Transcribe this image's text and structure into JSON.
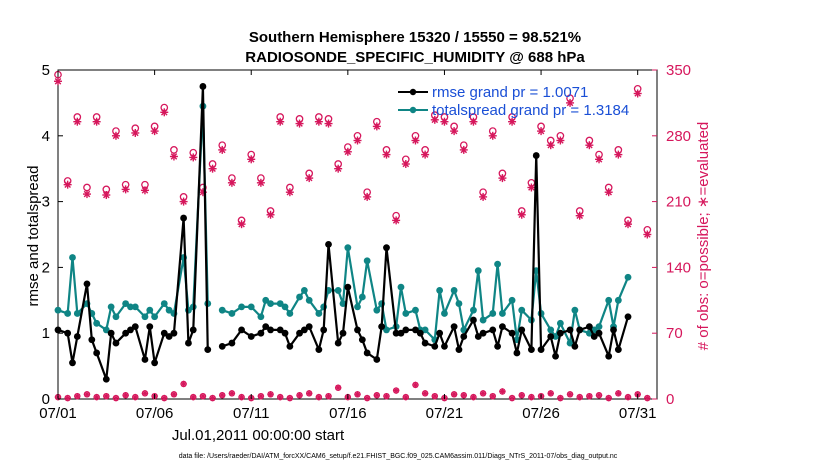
{
  "chart_data": {
    "type": "line",
    "title": "Southern Hemisphere 15320 / 15550 = 98.521%",
    "subtitle": "RADIOSONDE_SPECIFIC_HUMIDITY @ 688 hPa",
    "xlabel": "Jul.01,2011 00:00:00 start",
    "ylabel_left": "rmse and totalspread",
    "ylabel_right": "# of obs: o=possible; ∗=evaluated",
    "x_tick_labels": [
      "07/01",
      "07/06",
      "07/11",
      "07/16",
      "07/21",
      "07/26",
      "07/31"
    ],
    "x_tick_days": [
      1,
      6,
      11,
      16,
      21,
      26,
      31
    ],
    "xlim": [
      1,
      32
    ],
    "ylim_left": [
      0,
      5
    ],
    "ylim_right": [
      0,
      350
    ],
    "y_ticks_left": [
      "0",
      "1",
      "2",
      "3",
      "4",
      "5"
    ],
    "y_ticks_right": [
      "0",
      "70",
      "140",
      "210",
      "280",
      "350"
    ],
    "footer": "data file: /Users/raeder/DAI/ATM_forcXX/CAM6_setup/f.e21.FHIST_BGC.f09_025.CAM6assim.011/Diags_NTrS_2011-07/obs_diag_output.nc",
    "colors": {
      "rmse": "#000000",
      "spread": "#0f8585",
      "obs": "#d6175c",
      "legend_text": "#1a4fd6"
    },
    "series": [
      {
        "name": "rmse grand pr = 1.0071",
        "values": [
          1.05,
          1.0,
          0.55,
          0.95,
          1.75,
          0.9,
          0.7,
          0.3,
          1.0,
          0.85,
          1.0,
          1.05,
          1.1,
          0.6,
          1.1,
          0.55,
          1.0,
          0.95,
          1.0,
          2.75,
          0.85,
          1.05,
          4.75,
          0.75,
          null,
          0.8,
          0.85,
          1.05,
          0.95,
          1.0,
          1.1,
          1.05,
          1.05,
          1.0,
          0.8,
          1.0,
          1.05,
          1.1,
          0.75,
          1.05,
          2.35,
          0.85,
          1.0,
          1.7,
          1.05,
          0.9,
          0.7,
          0.6,
          1.1,
          2.3,
          1.0,
          1.0,
          1.05,
          1.05,
          1.0,
          0.85,
          0.8,
          1.0,
          0.8,
          1.1,
          0.75,
          0.95,
          1.2,
          0.95,
          1.0,
          1.05,
          0.8,
          1.1,
          1.0,
          0.7,
          1.05,
          0.75,
          3.7,
          0.75,
          0.95,
          0.65,
          1.0,
          1.05,
          0.8,
          1.05,
          1.1,
          0.95,
          1.0,
          0.65,
          1.05,
          0.75,
          1.25
        ],
        "days": [
          1.0,
          1.5,
          1.75,
          2.0,
          2.5,
          2.75,
          3.0,
          3.5,
          3.75,
          4.0,
          4.5,
          4.75,
          5.0,
          5.5,
          5.75,
          6.0,
          6.5,
          6.75,
          7.0,
          7.5,
          7.75,
          8.0,
          8.5,
          8.75,
          9.0,
          9.5,
          10.0,
          10.5,
          11.0,
          11.5,
          11.75,
          12.0,
          12.5,
          12.75,
          13.0,
          13.5,
          13.75,
          14.0,
          14.5,
          14.75,
          15.0,
          15.5,
          15.75,
          16.0,
          16.5,
          16.75,
          17.0,
          17.5,
          17.75,
          18.0,
          18.5,
          18.75,
          19.0,
          19.5,
          19.75,
          20.0,
          20.5,
          20.75,
          21.0,
          21.5,
          21.75,
          22.0,
          22.5,
          22.75,
          23.0,
          23.5,
          23.75,
          24.0,
          24.5,
          24.75,
          25.0,
          25.5,
          25.75,
          26.0,
          26.5,
          26.75,
          27.0,
          27.5,
          27.75,
          28.0,
          28.5,
          28.75,
          29.0,
          29.5,
          29.75,
          30.0,
          30.5
        ]
      },
      {
        "name": "totalspread grand pr = 1.3184",
        "values": [
          1.35,
          1.3,
          2.15,
          1.3,
          1.45,
          1.3,
          1.15,
          1.05,
          1.4,
          1.25,
          1.45,
          1.4,
          1.4,
          1.25,
          1.35,
          1.25,
          1.45,
          1.35,
          1.3,
          2.15,
          1.35,
          1.4,
          4.45,
          1.45,
          null,
          1.35,
          1.3,
          1.4,
          1.4,
          1.25,
          1.5,
          1.45,
          1.45,
          1.4,
          1.3,
          1.55,
          1.65,
          1.5,
          1.3,
          1.4,
          1.65,
          1.65,
          1.45,
          2.3,
          1.4,
          1.55,
          2.1,
          1.35,
          1.45,
          1.05,
          1.1,
          1.7,
          1.3,
          1.35,
          1.05,
          1.05,
          0.9,
          1.65,
          1.3,
          1.65,
          1.45,
          1.05,
          1.35,
          1.95,
          1.2,
          1.3,
          2.05,
          1.3,
          1.5,
          0.9,
          1.35,
          1.2,
          1.95,
          1.3,
          1.05,
          0.95,
          1.15,
          0.85,
          1.35,
          1.05,
          1.0,
          1.05,
          1.1,
          1.5,
          1.1,
          1.5,
          1.85
        ],
        "days": [
          1.0,
          1.5,
          1.75,
          2.0,
          2.5,
          2.75,
          3.0,
          3.5,
          3.75,
          4.0,
          4.5,
          4.75,
          5.0,
          5.5,
          5.75,
          6.0,
          6.5,
          6.75,
          7.0,
          7.5,
          7.75,
          8.0,
          8.5,
          8.75,
          9.0,
          9.5,
          10.0,
          10.5,
          11.0,
          11.5,
          11.75,
          12.0,
          12.5,
          12.75,
          13.0,
          13.5,
          13.75,
          14.0,
          14.5,
          14.75,
          15.0,
          15.5,
          15.75,
          16.0,
          16.5,
          16.75,
          17.0,
          17.5,
          17.75,
          18.0,
          18.5,
          18.75,
          19.0,
          19.5,
          19.75,
          20.0,
          20.5,
          20.75,
          21.0,
          21.5,
          21.75,
          22.0,
          22.5,
          22.75,
          23.0,
          23.5,
          23.75,
          24.0,
          24.5,
          24.75,
          25.0,
          25.5,
          25.75,
          26.0,
          26.5,
          26.75,
          27.0,
          27.5,
          27.75,
          28.0,
          28.5,
          28.75,
          29.0,
          29.5,
          29.75,
          30.0,
          30.5
        ]
      }
    ],
    "obs_counts": {
      "note": "observation counts plotted on right axis",
      "days": [
        1.0,
        1.5,
        2.0,
        2.5,
        3.0,
        3.5,
        4.0,
        4.5,
        5.0,
        5.5,
        6.0,
        6.5,
        7.0,
        7.5,
        8.0,
        8.5,
        9.0,
        9.5,
        10.0,
        10.5,
        11.0,
        11.5,
        12.0,
        12.5,
        13.0,
        13.5,
        14.0,
        14.5,
        15.0,
        15.5,
        16.0,
        16.5,
        17.0,
        17.5,
        18.0,
        18.5,
        19.0,
        19.5,
        20.0,
        20.5,
        21.0,
        21.5,
        22.0,
        22.5,
        23.0,
        23.5,
        24.0,
        24.5,
        25.0,
        25.5,
        26.0,
        26.5,
        27.0,
        27.5,
        28.0,
        28.5,
        29.0,
        29.5,
        30.0,
        30.5,
        31.0,
        31.5
      ],
      "possible": [
        345,
        232,
        300,
        225,
        300,
        223,
        285,
        228,
        288,
        228,
        290,
        310,
        265,
        215,
        262,
        225,
        250,
        270,
        235,
        190,
        260,
        235,
        200,
        300,
        225,
        298,
        240,
        300,
        298,
        250,
        268,
        280,
        220,
        295,
        265,
        195,
        255,
        280,
        265,
        302,
        300,
        290,
        270,
        300,
        220,
        285,
        240,
        300,
        200,
        230,
        290,
        275,
        280,
        320,
        200,
        275,
        260,
        225,
        265,
        190,
        330,
        180
      ],
      "evaluated": [
        338,
        228,
        295,
        218,
        295,
        217,
        280,
        223,
        283,
        222,
        285,
        305,
        258,
        210,
        257,
        220,
        245,
        265,
        230,
        186,
        255,
        230,
        196,
        295,
        220,
        293,
        235,
        295,
        293,
        245,
        263,
        275,
        215,
        290,
        260,
        190,
        250,
        275,
        260,
        297,
        295,
        285,
        265,
        295,
        215,
        280,
        235,
        295,
        196,
        225,
        285,
        270,
        275,
        315,
        195,
        270,
        255,
        220,
        260,
        186,
        325,
        175
      ]
    },
    "rejected_counts": {
      "days": [
        1.0,
        1.5,
        2.0,
        2.5,
        3.0,
        3.5,
        4.0,
        4.5,
        5.0,
        5.5,
        6.0,
        6.5,
        7.0,
        7.5,
        8.0,
        8.5,
        9.0,
        9.5,
        10.0,
        10.5,
        11.0,
        11.5,
        12.0,
        12.5,
        13.0,
        13.5,
        14.0,
        14.5,
        15.0,
        15.5,
        16.0,
        16.5,
        17.0,
        17.5,
        18.0,
        18.5,
        19.0,
        19.5,
        20.0,
        20.5,
        21.0,
        21.5,
        22.0,
        22.5,
        23.0,
        23.5,
        24.0,
        24.5,
        25.0,
        25.5,
        26.0,
        26.5,
        27.0,
        27.5,
        28.0,
        28.5,
        29.0,
        29.5,
        30.0,
        30.5,
        31.0,
        31.5
      ],
      "values": [
        2,
        1,
        3,
        5,
        2,
        3,
        1,
        4,
        2,
        6,
        3,
        1,
        5,
        16,
        2,
        3,
        1,
        4,
        6,
        2,
        1,
        3,
        5,
        2,
        1,
        4,
        6,
        2,
        3,
        12,
        2,
        5,
        1,
        4,
        3,
        9,
        2,
        15,
        6,
        3,
        1,
        5,
        4,
        2,
        6,
        3,
        8,
        1,
        4,
        2,
        3,
        6,
        1,
        5,
        2,
        3,
        4,
        1,
        6,
        2,
        5,
        1
      ]
    }
  }
}
